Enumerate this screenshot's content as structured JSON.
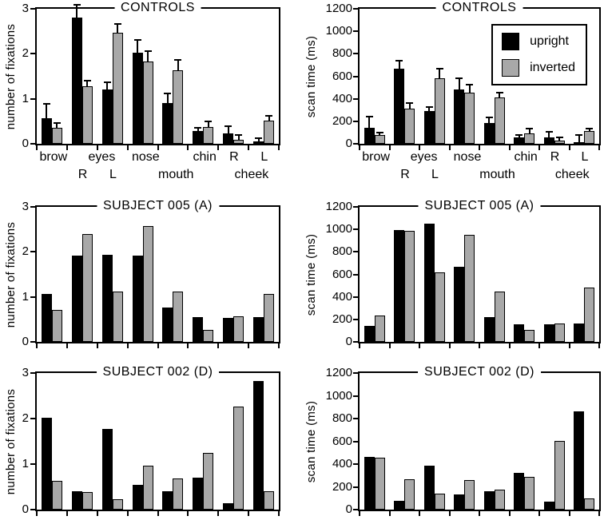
{
  "chart_data": {
    "type": "bar",
    "figure_description": "Six paired bar charts comparing upright vs inverted face viewing across facial regions",
    "categories": [
      "brow",
      "eyes R",
      "eyes L",
      "nose",
      "mouth",
      "chin",
      "cheek R",
      "cheek L"
    ],
    "series_names": [
      "upright",
      "inverted"
    ],
    "colors": {
      "upright": "#000000",
      "inverted": "#a8a8a8"
    },
    "grid": false,
    "x_axis_labels": [
      {
        "text": "brow",
        "row": 1,
        "pos": 0.55
      },
      {
        "text": "R",
        "row": 2,
        "pos": 1.52
      },
      {
        "text": "eyes",
        "row": 1,
        "pos": 2.15
      },
      {
        "text": "L",
        "row": 2,
        "pos": 2.52
      },
      {
        "text": "nose",
        "row": 1,
        "pos": 3.6
      },
      {
        "text": "mouth",
        "row": 2,
        "pos": 4.6
      },
      {
        "text": "chin",
        "row": 1,
        "pos": 5.55
      },
      {
        "text": "R",
        "row": 1,
        "pos": 6.52
      },
      {
        "text": "cheek",
        "row": 2,
        "pos": 7.1
      },
      {
        "text": "L",
        "row": 1,
        "pos": 7.52
      }
    ],
    "legend": {
      "position": "top-right of CONTROLS scan time panel",
      "items": [
        {
          "label": "upright",
          "color": "#000000"
        },
        {
          "label": "inverted",
          "color": "#a8a8a8"
        }
      ]
    },
    "charts": [
      {
        "id": "controls-fixations",
        "title": "CONTROLS",
        "ylabel": "number of fixations",
        "ymax": 3,
        "yticks": [
          0,
          1,
          2,
          3
        ],
        "show_x_labels": true,
        "series": [
          {
            "name": "upright",
            "values": [
              0.57,
              2.81,
              1.21,
              2.03,
              0.91,
              0.28,
              0.23,
              0.06
            ],
            "errors": [
              0.33,
              0.3,
              0.18,
              0.31,
              0.23,
              0.09,
              0.17,
              0.08
            ]
          },
          {
            "name": "inverted",
            "values": [
              0.36,
              1.27,
              2.46,
              1.83,
              1.63,
              0.38,
              0.09,
              0.51
            ],
            "errors": [
              0.12,
              0.14,
              0.21,
              0.25,
              0.25,
              0.15,
              0.13,
              0.13
            ]
          }
        ]
      },
      {
        "id": "controls-scantime",
        "title": "CONTROLS",
        "ylabel": "scan time (ms)",
        "ymax": 1200,
        "yticks": [
          0,
          200,
          400,
          600,
          800,
          1000,
          1200
        ],
        "show_x_labels": true,
        "legend": true,
        "series": [
          {
            "name": "upright",
            "values": [
              145,
              665,
              290,
              480,
              185,
              55,
              55,
              15
            ],
            "errors": [
              105,
              80,
              45,
              105,
              55,
              25,
              60,
              70
            ]
          },
          {
            "name": "inverted",
            "values": [
              80,
              315,
              585,
              455,
              415,
              90,
              25,
              115
            ],
            "errors": [
              30,
              55,
              95,
              80,
              50,
              50,
              35,
              30
            ]
          }
        ]
      },
      {
        "id": "subject-005-fixations",
        "title": "SUBJECT 005 (A)",
        "ylabel": "number of fixations",
        "ymax": 3,
        "yticks": [
          0,
          1,
          2,
          3
        ],
        "series": [
          {
            "name": "upright",
            "values": [
              1.07,
              1.91,
              1.94,
              1.92,
              0.77,
              0.55,
              0.54,
              0.55
            ]
          },
          {
            "name": "inverted",
            "values": [
              0.71,
              2.39,
              1.12,
              2.58,
              1.11,
              0.26,
              0.57,
              1.07
            ]
          }
        ]
      },
      {
        "id": "subject-005-scantime",
        "title": "SUBJECT 005 (A)",
        "ylabel": "scan time (ms)",
        "ymax": 1200,
        "yticks": [
          0,
          200,
          400,
          600,
          800,
          1000,
          1200
        ],
        "series": [
          {
            "name": "upright",
            "values": [
              140,
              995,
              1050,
              670,
              220,
              155,
              155,
              160
            ]
          },
          {
            "name": "inverted",
            "values": [
              235,
              990,
              620,
              950,
              445,
              105,
              165,
              480
            ]
          }
        ]
      },
      {
        "id": "subject-002-fixations",
        "title": "SUBJECT 002 (D)",
        "ylabel": "number of fixations",
        "ymax": 3,
        "yticks": [
          0,
          1,
          2,
          3
        ],
        "series": [
          {
            "name": "upright",
            "values": [
              2.02,
              0.4,
              1.78,
              0.54,
              0.4,
              0.71,
              0.14,
              2.83
            ]
          },
          {
            "name": "inverted",
            "values": [
              0.63,
              0.39,
              0.22,
              0.97,
              0.68,
              1.24,
              2.27,
              0.41
            ]
          }
        ]
      },
      {
        "id": "subject-002-scantime",
        "title": "SUBJECT 002 (D)",
        "ylabel": "scan time (ms)",
        "ymax": 1200,
        "yticks": [
          0,
          200,
          400,
          600,
          800,
          1000,
          1200
        ],
        "series": [
          {
            "name": "upright",
            "values": [
              460,
              80,
              385,
              130,
              160,
              320,
              70,
              865
            ]
          },
          {
            "name": "inverted",
            "values": [
              455,
              265,
              140,
              260,
              175,
              285,
              605,
              95
            ]
          }
        ]
      }
    ]
  }
}
